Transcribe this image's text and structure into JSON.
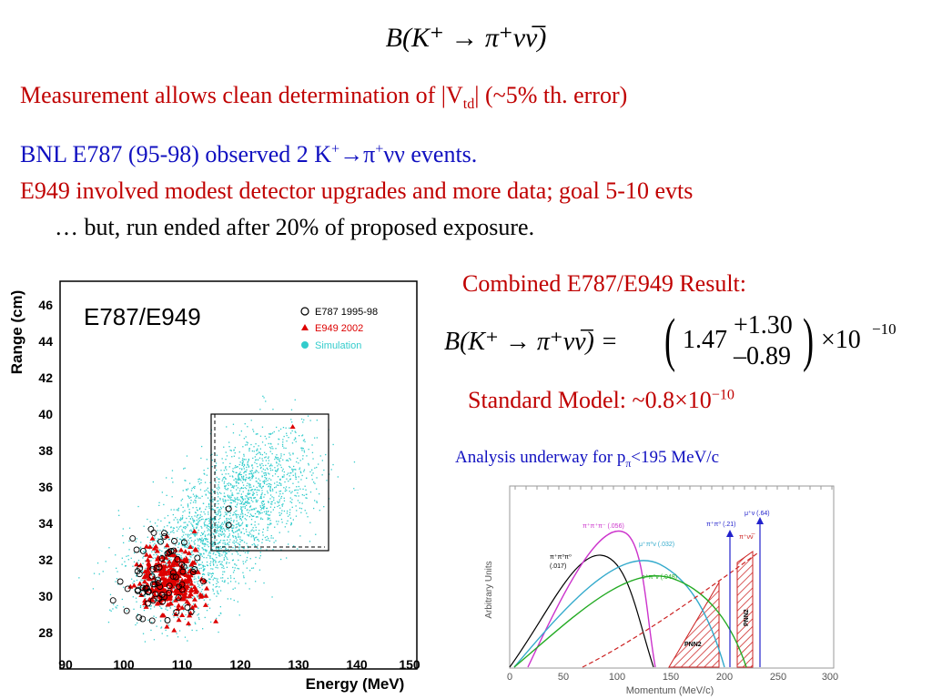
{
  "header": {
    "formula": "B(K⁺ → π⁺νν̅)"
  },
  "bullets": {
    "line1_pre": "Measurement allows clean determination of |V",
    "line1_sub": "td",
    "line1_post": "| (~5% th. error)",
    "line2_pre": "BNL E787 (95-98) observed 2 K",
    "line2_mid": "→π",
    "line2_post": "νν events.",
    "sup_plus": "+",
    "line3": "E949 involved modest detector upgrades and more data; goal 5-10 evts",
    "line4": "… but, run ended after 20% of proposed exposure."
  },
  "result": {
    "title": "Combined E787/E949 Result:",
    "lhs": "B(K⁺ → π⁺νν̅) =",
    "central": "1.47",
    "plus": "+1.30",
    "minus": "–0.89",
    "times": "×10",
    "exponent": "−10",
    "sm_pre": "Standard Model: ~0.8×10",
    "sm_exp": "−10",
    "analysis_pre": "Analysis underway for p",
    "analysis_sub": "π",
    "analysis_post": "<195 MeV/c"
  },
  "scatter_plot": {
    "title": "E787/E949",
    "xlabel": "Energy (MeV)",
    "ylabel": "Range (cm)",
    "xticks": [
      "90",
      "100",
      "110",
      "120",
      "130",
      "140",
      "150"
    ],
    "yticks": [
      "28",
      "30",
      "32",
      "34",
      "36",
      "38",
      "40",
      "42",
      "44",
      "46"
    ],
    "legend": [
      "E787 1995-98",
      "E949 2002",
      "Simulation"
    ],
    "colors": {
      "sim": "#33cccc",
      "e949": "#dd0000",
      "e787": "#000000"
    }
  },
  "momentum_plot": {
    "xlabel": "Momentum  (MeV/c)",
    "ylabel": "Arbitrary  Units",
    "xticks": [
      "0",
      "50",
      "100",
      "150",
      "200",
      "250",
      "300"
    ],
    "labels": {
      "pipipi": "π⁺π⁺π⁻ (.056)",
      "pipi0pi0": "π⁺π⁰π⁰",
      "pipi0pi0_val": "(.017)",
      "mupi0nu": "μ⁺π⁰ν (.032)",
      "epi0nu": "e⁺π⁰ν (.048)",
      "pipi0": "π⁺π⁰ (.21)",
      "munu": "μ⁺ν (.64)",
      "pinunu": "π⁺νν̅",
      "pnn2_a": "PNN2",
      "pnn2_b": "PNN2"
    }
  }
}
